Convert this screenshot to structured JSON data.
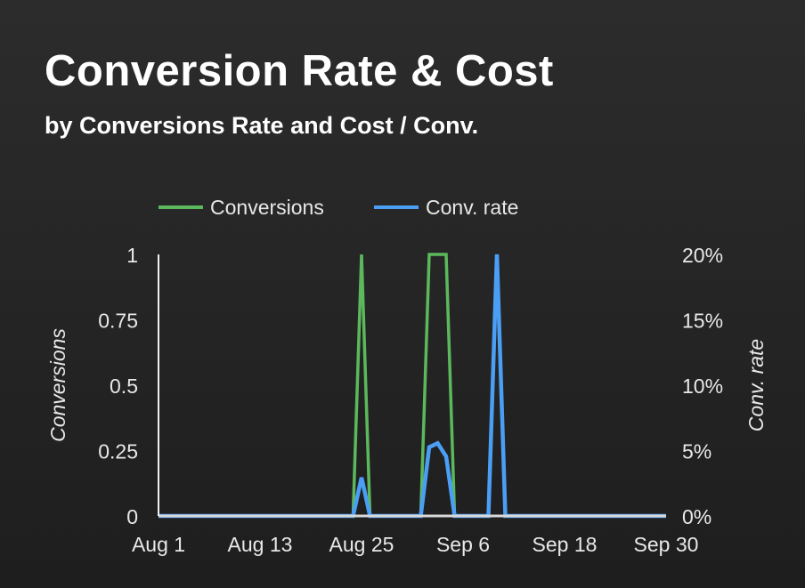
{
  "header": {
    "title": "Conversion Rate & Cost",
    "subtitle": "by Conversions Rate and Cost / Conv."
  },
  "chart_data": {
    "type": "line",
    "title": "Conversion Rate & Cost",
    "subtitle": "by Conversions Rate and Cost / Conv.",
    "x_start": "Aug 1",
    "x_end": "Sep 30",
    "x_tick_labels": [
      "Aug 1",
      "Aug 13",
      "Aug 25",
      "Sep 6",
      "Sep 18",
      "Sep 30"
    ],
    "x_tick_days": [
      0,
      12,
      24,
      36,
      48,
      60
    ],
    "num_days": 61,
    "y_left": {
      "label": "Conversions",
      "range": [
        0,
        1
      ],
      "ticks": [
        0,
        0.25,
        0.5,
        0.75,
        1
      ],
      "tick_labels": [
        "0",
        "0.25",
        "0.5",
        "0.75",
        "1"
      ]
    },
    "y_right": {
      "label": "Conv. rate",
      "range": [
        0,
        20
      ],
      "ticks": [
        0,
        5,
        10,
        15,
        20
      ],
      "tick_labels": [
        "0%",
        "5%",
        "10%",
        "15%",
        "20%"
      ]
    },
    "legend_position": "top",
    "series": [
      {
        "name": "Conversions",
        "axis": "left",
        "color": "#5cb85c",
        "nonzero": {
          "24": 1,
          "32": 1,
          "33": 1,
          "34": 1,
          "40": 1
        }
      },
      {
        "name": "Conv. rate",
        "axis": "right",
        "color": "#4a9ff5",
        "nonzero": {
          "24": 2.94,
          "32": 5.26,
          "33": 5.56,
          "34": 4.55,
          "40": 20
        }
      }
    ]
  }
}
